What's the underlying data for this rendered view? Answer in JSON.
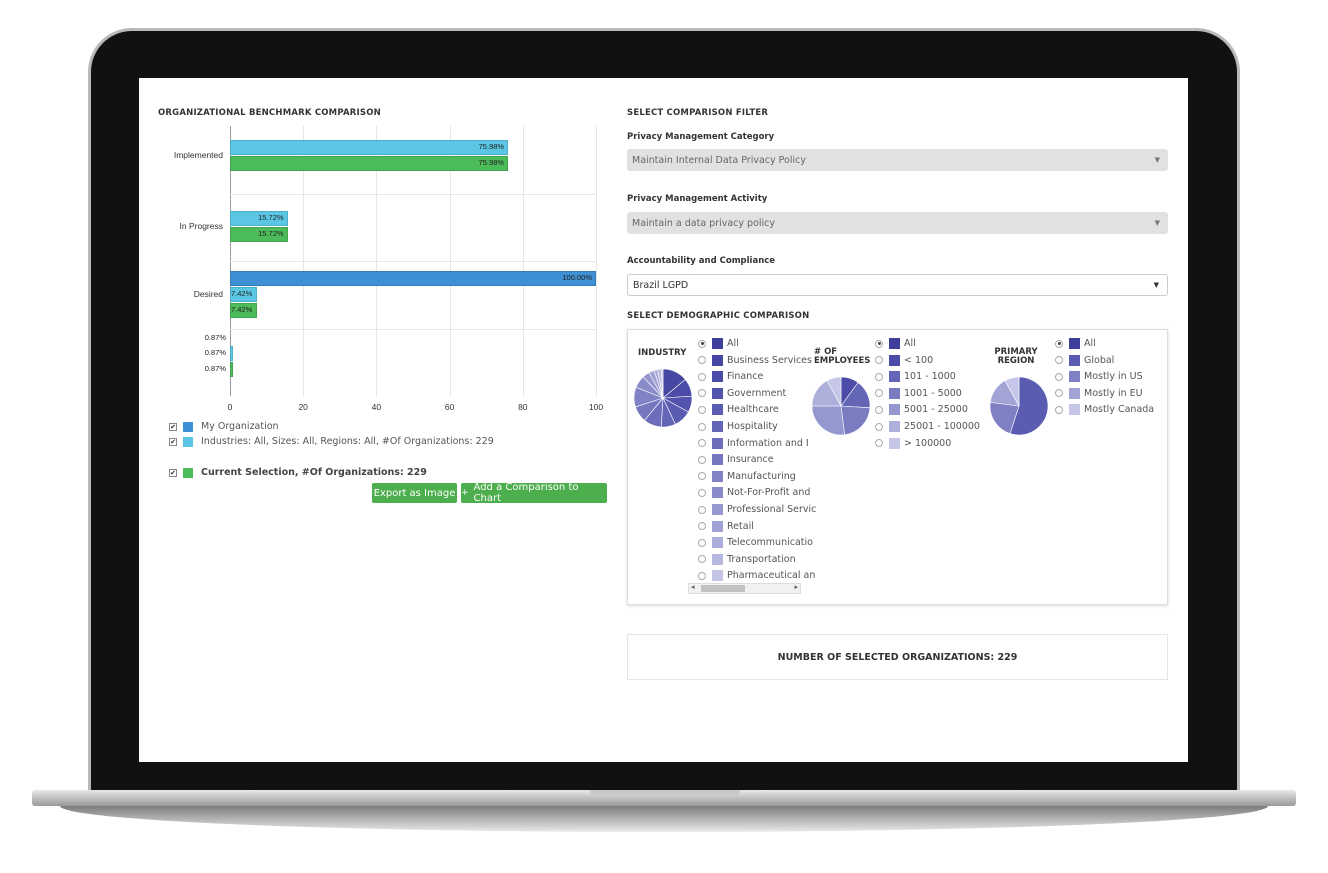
{
  "left": {
    "title": "ORGANIZATIONAL BENCHMARK COMPARISON",
    "legend": [
      {
        "label": "My Organization",
        "color": "#3f8fd4"
      },
      {
        "label": "Industries: All, Sizes: All, Regions: All, #Of Organizations: 229",
        "color": "#5bc6e4"
      }
    ],
    "current_selection": {
      "label": "Current Selection, #Of Organizations: 229",
      "color": "#4cbb5a"
    },
    "buttons": {
      "export": "Export as Image",
      "add": "Add a Comparison to Chart",
      "add_icon": "+"
    }
  },
  "chart_data": {
    "type": "bar",
    "orientation": "horizontal",
    "categories": [
      "Implemented",
      "In Progress",
      "Desired",
      ""
    ],
    "series": [
      {
        "name": "My Organization",
        "color": "#3f8fd4",
        "values": [
          null,
          null,
          100.0,
          null
        ],
        "labels": [
          "",
          "",
          "100.00%",
          ""
        ]
      },
      {
        "name": "Industries: All, Sizes: All, Regions: All, #Of Organizations: 229",
        "color": "#5bc6e4",
        "values": [
          75.98,
          15.72,
          7.42,
          0.87
        ],
        "labels": [
          "75.98%",
          "15.72%",
          "7.42%",
          "0.87%"
        ]
      },
      {
        "name": "Current Selection, #Of Organizations: 229",
        "color": "#4cbb5a",
        "values": [
          75.98,
          15.72,
          7.42,
          0.87
        ],
        "labels": [
          "75.98%",
          "15.72%",
          "7.42%",
          "0.87%"
        ]
      }
    ],
    "overlap_label": "0.87%",
    "xlim": [
      0,
      100
    ],
    "xticks": [
      "0",
      "20",
      "40",
      "60",
      "80",
      "100"
    ],
    "grid": true,
    "legend_position": "bottom"
  },
  "right": {
    "filter_title": "SELECT COMPARISON FILTER",
    "category_label": "Privacy Management Category",
    "category_value": "Maintain Internal Data Privacy Policy",
    "activity_label": "Privacy Management Activity",
    "activity_value": "Maintain a data privacy policy",
    "compliance_label": "Accountability and Compliance",
    "compliance_value": "Brazil LGPD",
    "caret": "▼",
    "demographic_title": "SELECT DEMOGRAPHIC COMPARISON",
    "industry": {
      "title_line1": "INDUSTRY",
      "options": [
        {
          "label": "All",
          "color": "#3e3f9a",
          "selected": true
        },
        {
          "label": "Business Services",
          "color": "#4547a3"
        },
        {
          "label": "Finance",
          "color": "#4a4ca8"
        },
        {
          "label": "Government",
          "color": "#5153ac"
        },
        {
          "label": "Healthcare",
          "color": "#5a5cb1"
        },
        {
          "label": "Hospitality",
          "color": "#6365b6"
        },
        {
          "label": "Information and I",
          "color": "#6c6ebb"
        },
        {
          "label": "Insurance",
          "color": "#7577c0"
        },
        {
          "label": "Manufacturing",
          "color": "#8082c5"
        },
        {
          "label": "Not-For-Profit and",
          "color": "#8a8cca"
        },
        {
          "label": "Professional Servic",
          "color": "#9597cf"
        },
        {
          "label": "Retail",
          "color": "#a0a2d5"
        },
        {
          "label": "Telecommunicatio",
          "color": "#abaddb"
        },
        {
          "label": "Transportation",
          "color": "#b7b8e0"
        },
        {
          "label": "Pharmaceutical an",
          "color": "#c3c4e6"
        }
      ],
      "scroll_left": "◂",
      "scroll_right": "▸"
    },
    "employees": {
      "title_line1": "# OF",
      "title_line2": "EMPLOYEES",
      "options": [
        {
          "label": "All",
          "color": "#3e3f9a",
          "selected": true
        },
        {
          "label": "< 100",
          "color": "#4a4ca8"
        },
        {
          "label": "101 - 1000",
          "color": "#6365b6"
        },
        {
          "label": "1001 - 5000",
          "color": "#7a7cc2"
        },
        {
          "label": "5001 - 25000",
          "color": "#9597cf"
        },
        {
          "label": "25001 - 100000",
          "color": "#aeb0dc"
        },
        {
          "label": "> 100000",
          "color": "#c6c7e8"
        }
      ]
    },
    "region": {
      "title_line1": "PRIMARY",
      "title_line2": "REGION",
      "options": [
        {
          "label": "All",
          "color": "#3e3f9a",
          "selected": true
        },
        {
          "label": "Global",
          "color": "#5a5cb1"
        },
        {
          "label": "Mostly in US",
          "color": "#7f81c4"
        },
        {
          "label": "Mostly in EU",
          "color": "#a2a4d6"
        },
        {
          "label": "Mostly Canada",
          "color": "#c6c7e8"
        }
      ]
    },
    "selected_count": "NUMBER OF SELECTED ORGANIZATIONS: 229"
  }
}
